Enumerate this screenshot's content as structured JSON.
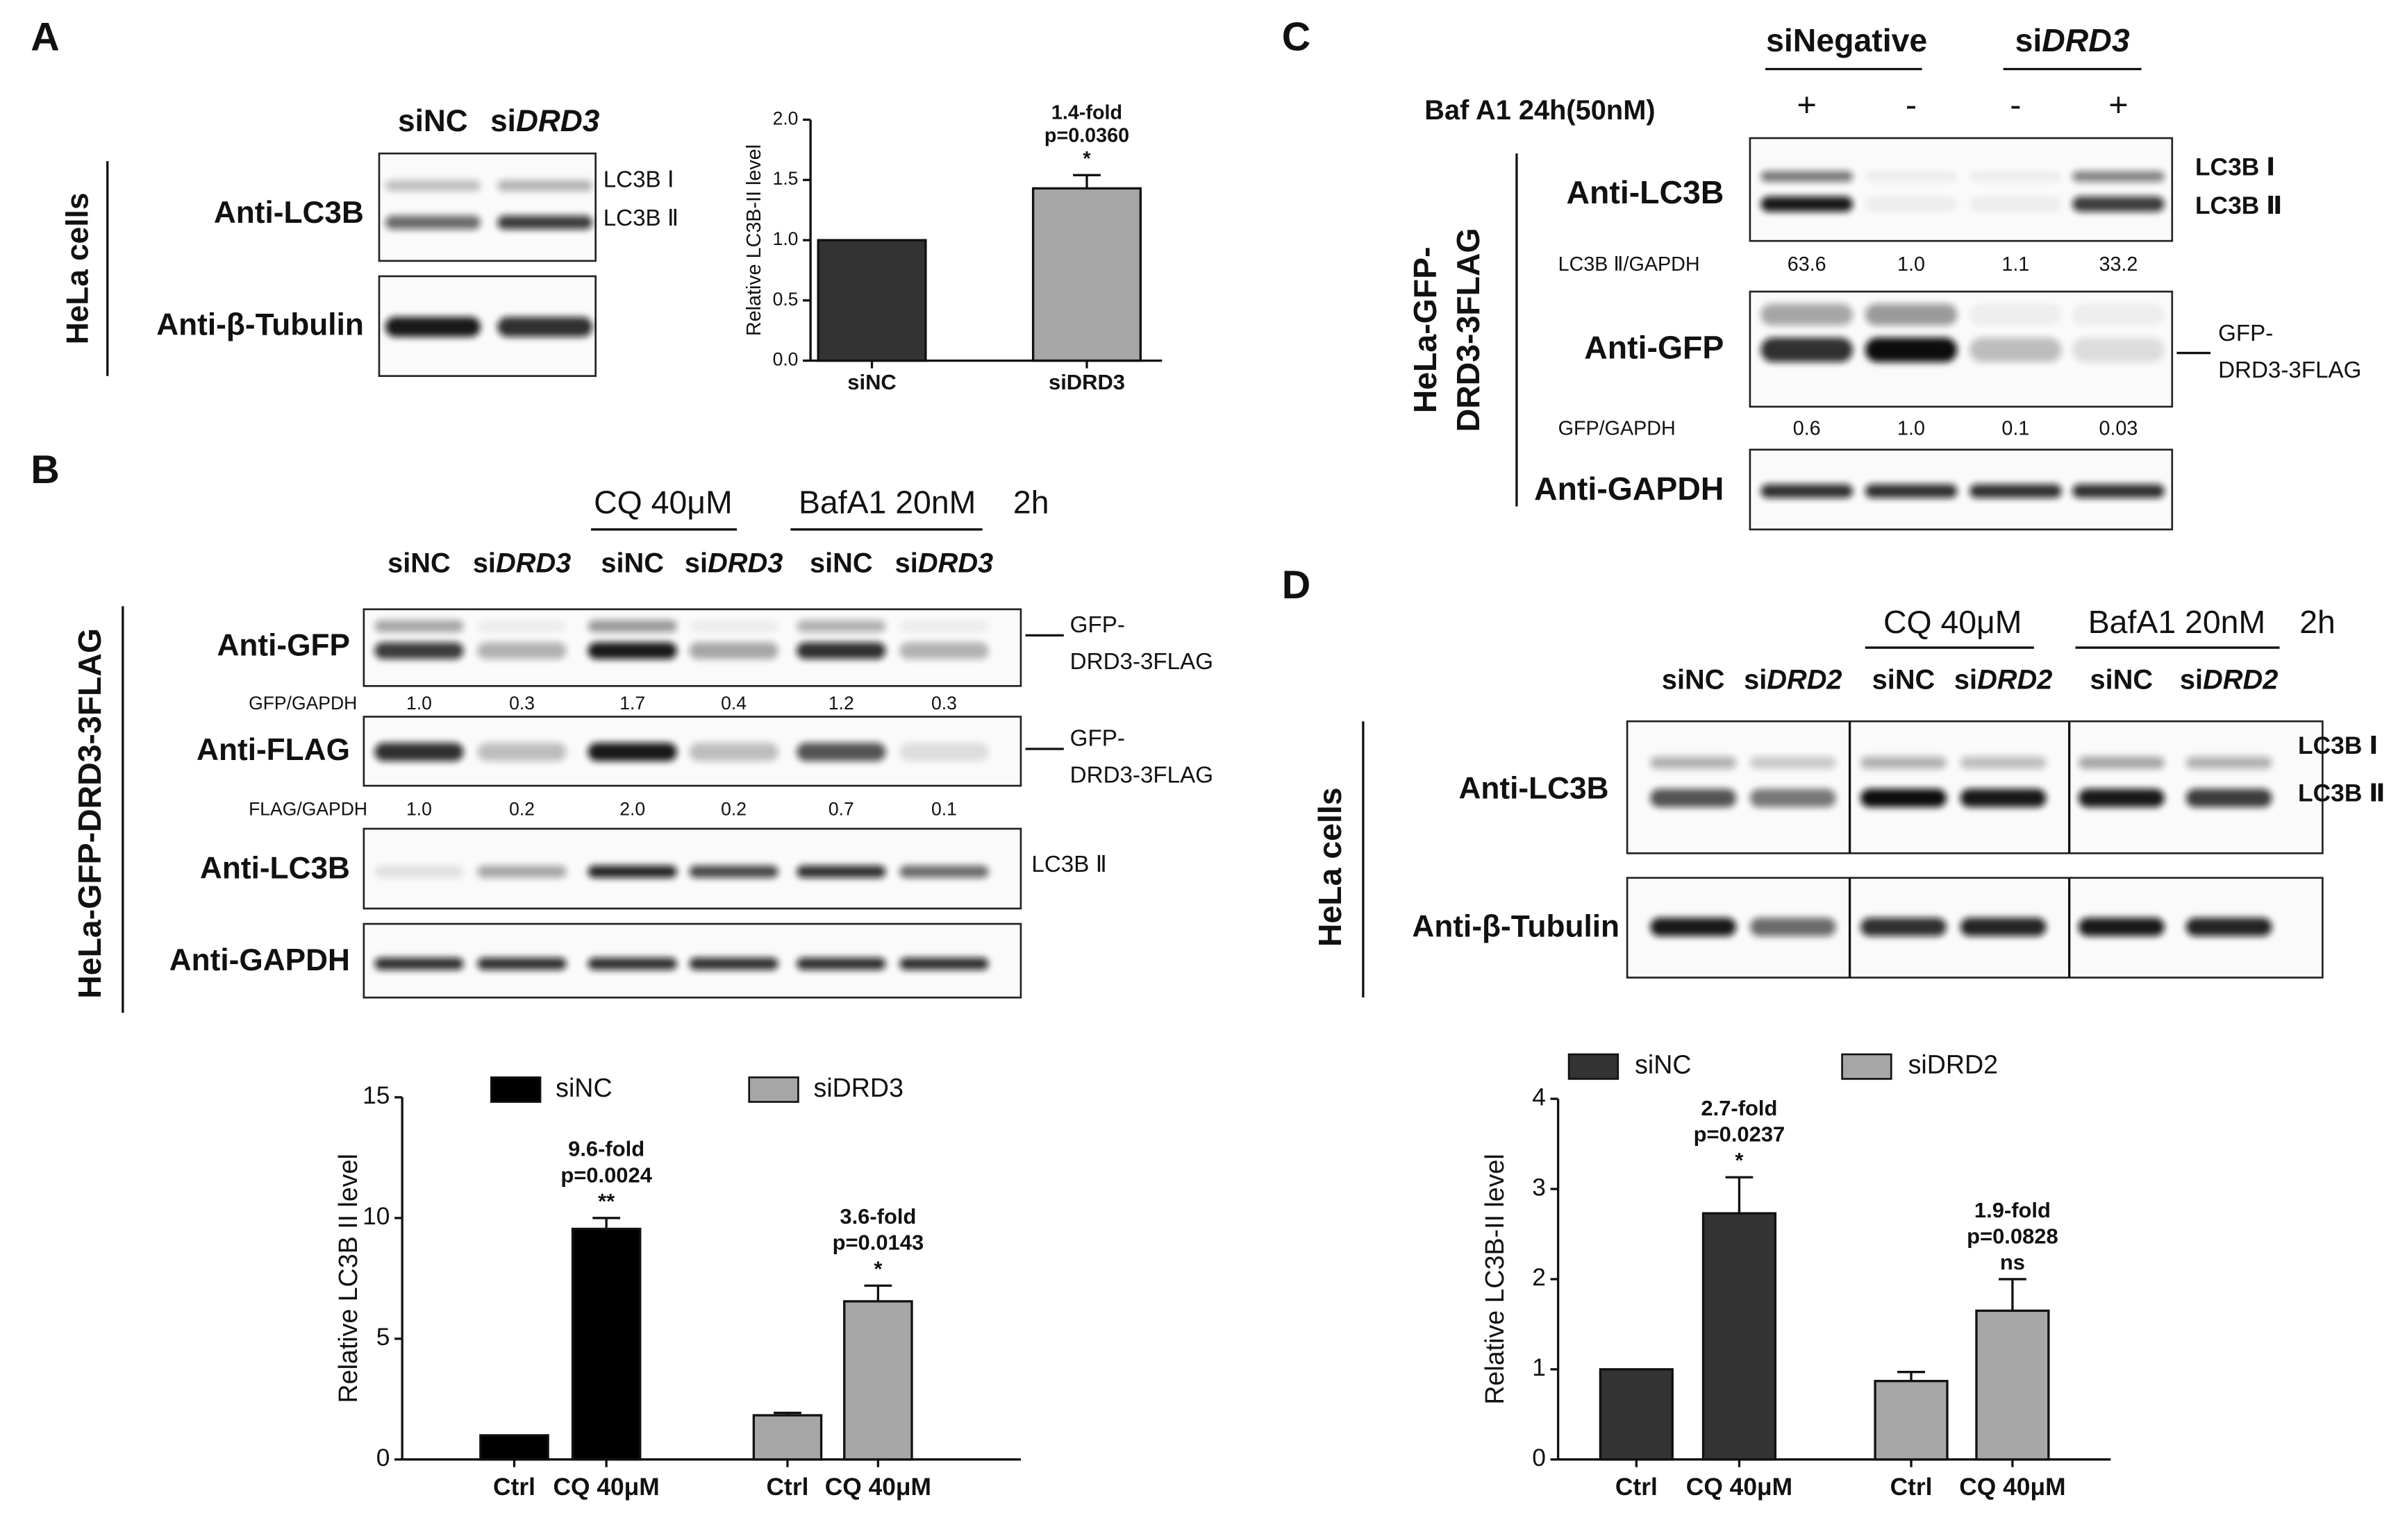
{
  "panels": {
    "A": {
      "letter": "A",
      "lanes": [
        [
          "siNC"
        ],
        [
          "si",
          "DRD3"
        ]
      ],
      "cell_line": "HeLa cells",
      "blots": [
        {
          "antibody": "Anti-LC3B",
          "bands": [
            "LC3B Ⅰ",
            "LC3B Ⅱ"
          ]
        },
        {
          "antibody": "Anti-β-Tubulin"
        }
      ]
    },
    "B": {
      "letter": "B",
      "treatments": [
        "CQ 40μM",
        "BafA1 20nM"
      ],
      "time": "2h",
      "lanes": [
        [
          "siNC"
        ],
        [
          "si",
          "DRD3"
        ],
        [
          "siNC"
        ],
        [
          "si",
          "DRD3"
        ],
        [
          "siNC"
        ],
        [
          "si",
          "DRD3"
        ]
      ],
      "cell_line": "HeLa-GFP-DRD3-3FLAG",
      "blots": [
        {
          "antibody": "Anti-GFP",
          "target": [
            "GFP-",
            "DRD3-3FLAG"
          ],
          "ratio": {
            "label": "GFP/GAPDH",
            "values": [
              "1.0",
              "0.3",
              "1.7",
              "0.4",
              "1.2",
              "0.3"
            ]
          }
        },
        {
          "antibody": "Anti-FLAG",
          "target": [
            "GFP-",
            "DRD3-3FLAG"
          ],
          "ratio": {
            "label": "FLAG/GAPDH",
            "values": [
              "1.0",
              "0.2",
              "2.0",
              "0.2",
              "0.7",
              "0.1"
            ]
          }
        },
        {
          "antibody": "Anti-LC3B",
          "bands": [
            "LC3B Ⅱ"
          ]
        },
        {
          "antibody": "Anti-GAPDH"
        }
      ]
    },
    "C": {
      "letter": "C",
      "groups": [
        [
          "siNegative"
        ],
        [
          "si",
          "DRD3"
        ]
      ],
      "treatment": "Baf A1 24h(50nM)",
      "signs": [
        "+",
        "-",
        "-",
        "+"
      ],
      "cell_line": [
        "HeLa-GFP-",
        "DRD3-3FLAG"
      ],
      "blots": [
        {
          "antibody": "Anti-LC3B",
          "bands": [
            "LC3B Ⅰ",
            "LC3B Ⅱ"
          ],
          "ratio": {
            "label": "LC3B Ⅱ/GAPDH",
            "values": [
              "63.6",
              "1.0",
              "1.1",
              "33.2"
            ]
          }
        },
        {
          "antibody": "Anti-GFP",
          "target": [
            "GFP-",
            "DRD3-3FLAG"
          ],
          "ratio": {
            "label": "GFP/GAPDH",
            "values": [
              "0.6",
              "1.0",
              "0.1",
              "0.03"
            ]
          }
        },
        {
          "antibody": "Anti-GAPDH"
        }
      ]
    },
    "D": {
      "letter": "D",
      "treatments": [
        "CQ 40μM",
        "BafA1 20nM"
      ],
      "time": "2h",
      "lanes": [
        [
          "siNC"
        ],
        [
          "si",
          "DRD2"
        ],
        [
          "siNC"
        ],
        [
          "si",
          "DRD2"
        ],
        [
          "siNC"
        ],
        [
          "si",
          "DRD2"
        ]
      ],
      "cell_line": "HeLa cells",
      "blots": [
        {
          "antibody": "Anti-LC3B",
          "bands": [
            "LC3B Ⅰ",
            "LC3B Ⅱ"
          ]
        },
        {
          "antibody": "Anti-β-Tubulin"
        }
      ]
    }
  },
  "chart_data": [
    {
      "type": "bar",
      "ylabel": "Relative LC3B-II level",
      "categories": [
        "siNC",
        "siDRD3"
      ],
      "values": [
        1.0,
        1.43
      ],
      "errors": [
        null,
        0.11
      ],
      "colors": [
        "#333333",
        "#a6a6a6"
      ],
      "annotations": [
        null,
        [
          "1.4-fold",
          "p=0.0360",
          "*"
        ]
      ],
      "ylim": [
        0,
        2
      ],
      "yticks": [
        {
          "value": 0,
          "label": "0.0"
        },
        {
          "value": 0.5,
          "label": "0.5"
        },
        {
          "value": 1,
          "label": "1.0"
        },
        {
          "value": 1.5,
          "label": "1.5"
        },
        {
          "value": 2,
          "label": "2.0"
        }
      ]
    },
    {
      "type": "bar",
      "ylabel": "Relative LC3B II level",
      "categories": [
        "Ctrl",
        "CQ 40μM",
        "Ctrl",
        "CQ 40μM"
      ],
      "series": [
        {
          "name": "siNC",
          "color": "#000000",
          "values": [
            1.0,
            9.55,
            null,
            null
          ],
          "errors": [
            null,
            0.45,
            null,
            null
          ]
        },
        {
          "name": "siDRD3",
          "color": "#a6a6a6",
          "values": [
            null,
            null,
            1.83,
            6.55
          ],
          "errors": [
            null,
            null,
            0.1,
            0.65
          ]
        }
      ],
      "annotations": [
        null,
        [
          "9.6-fold",
          "p=0.0024",
          "**"
        ],
        null,
        [
          "3.6-fold",
          "p=0.0143",
          "*"
        ]
      ],
      "ylim": [
        0,
        15
      ],
      "yticks": [
        0,
        5,
        10,
        15
      ],
      "legend": "top"
    },
    {
      "type": "bar",
      "ylabel": "Relative LC3B-II level",
      "categories": [
        "Ctrl",
        "CQ 40μM",
        "Ctrl",
        "CQ 40μM"
      ],
      "series": [
        {
          "name": "siNC",
          "color": "#333333",
          "values": [
            1.0,
            2.73,
            null,
            null
          ],
          "errors": [
            null,
            0.4,
            null,
            null
          ]
        },
        {
          "name": "siDRD2",
          "color": "#a6a6a6",
          "values": [
            null,
            null,
            0.87,
            1.65
          ],
          "errors": [
            null,
            null,
            0.1,
            0.35
          ]
        }
      ],
      "annotations": [
        null,
        [
          "2.7-fold",
          "p=0.0237",
          "*"
        ],
        null,
        [
          "1.9-fold",
          "p=0.0828",
          "ns"
        ]
      ],
      "ylim": [
        0,
        4
      ],
      "yticks": [
        0,
        1,
        2,
        3,
        4
      ],
      "legend": "top"
    }
  ]
}
